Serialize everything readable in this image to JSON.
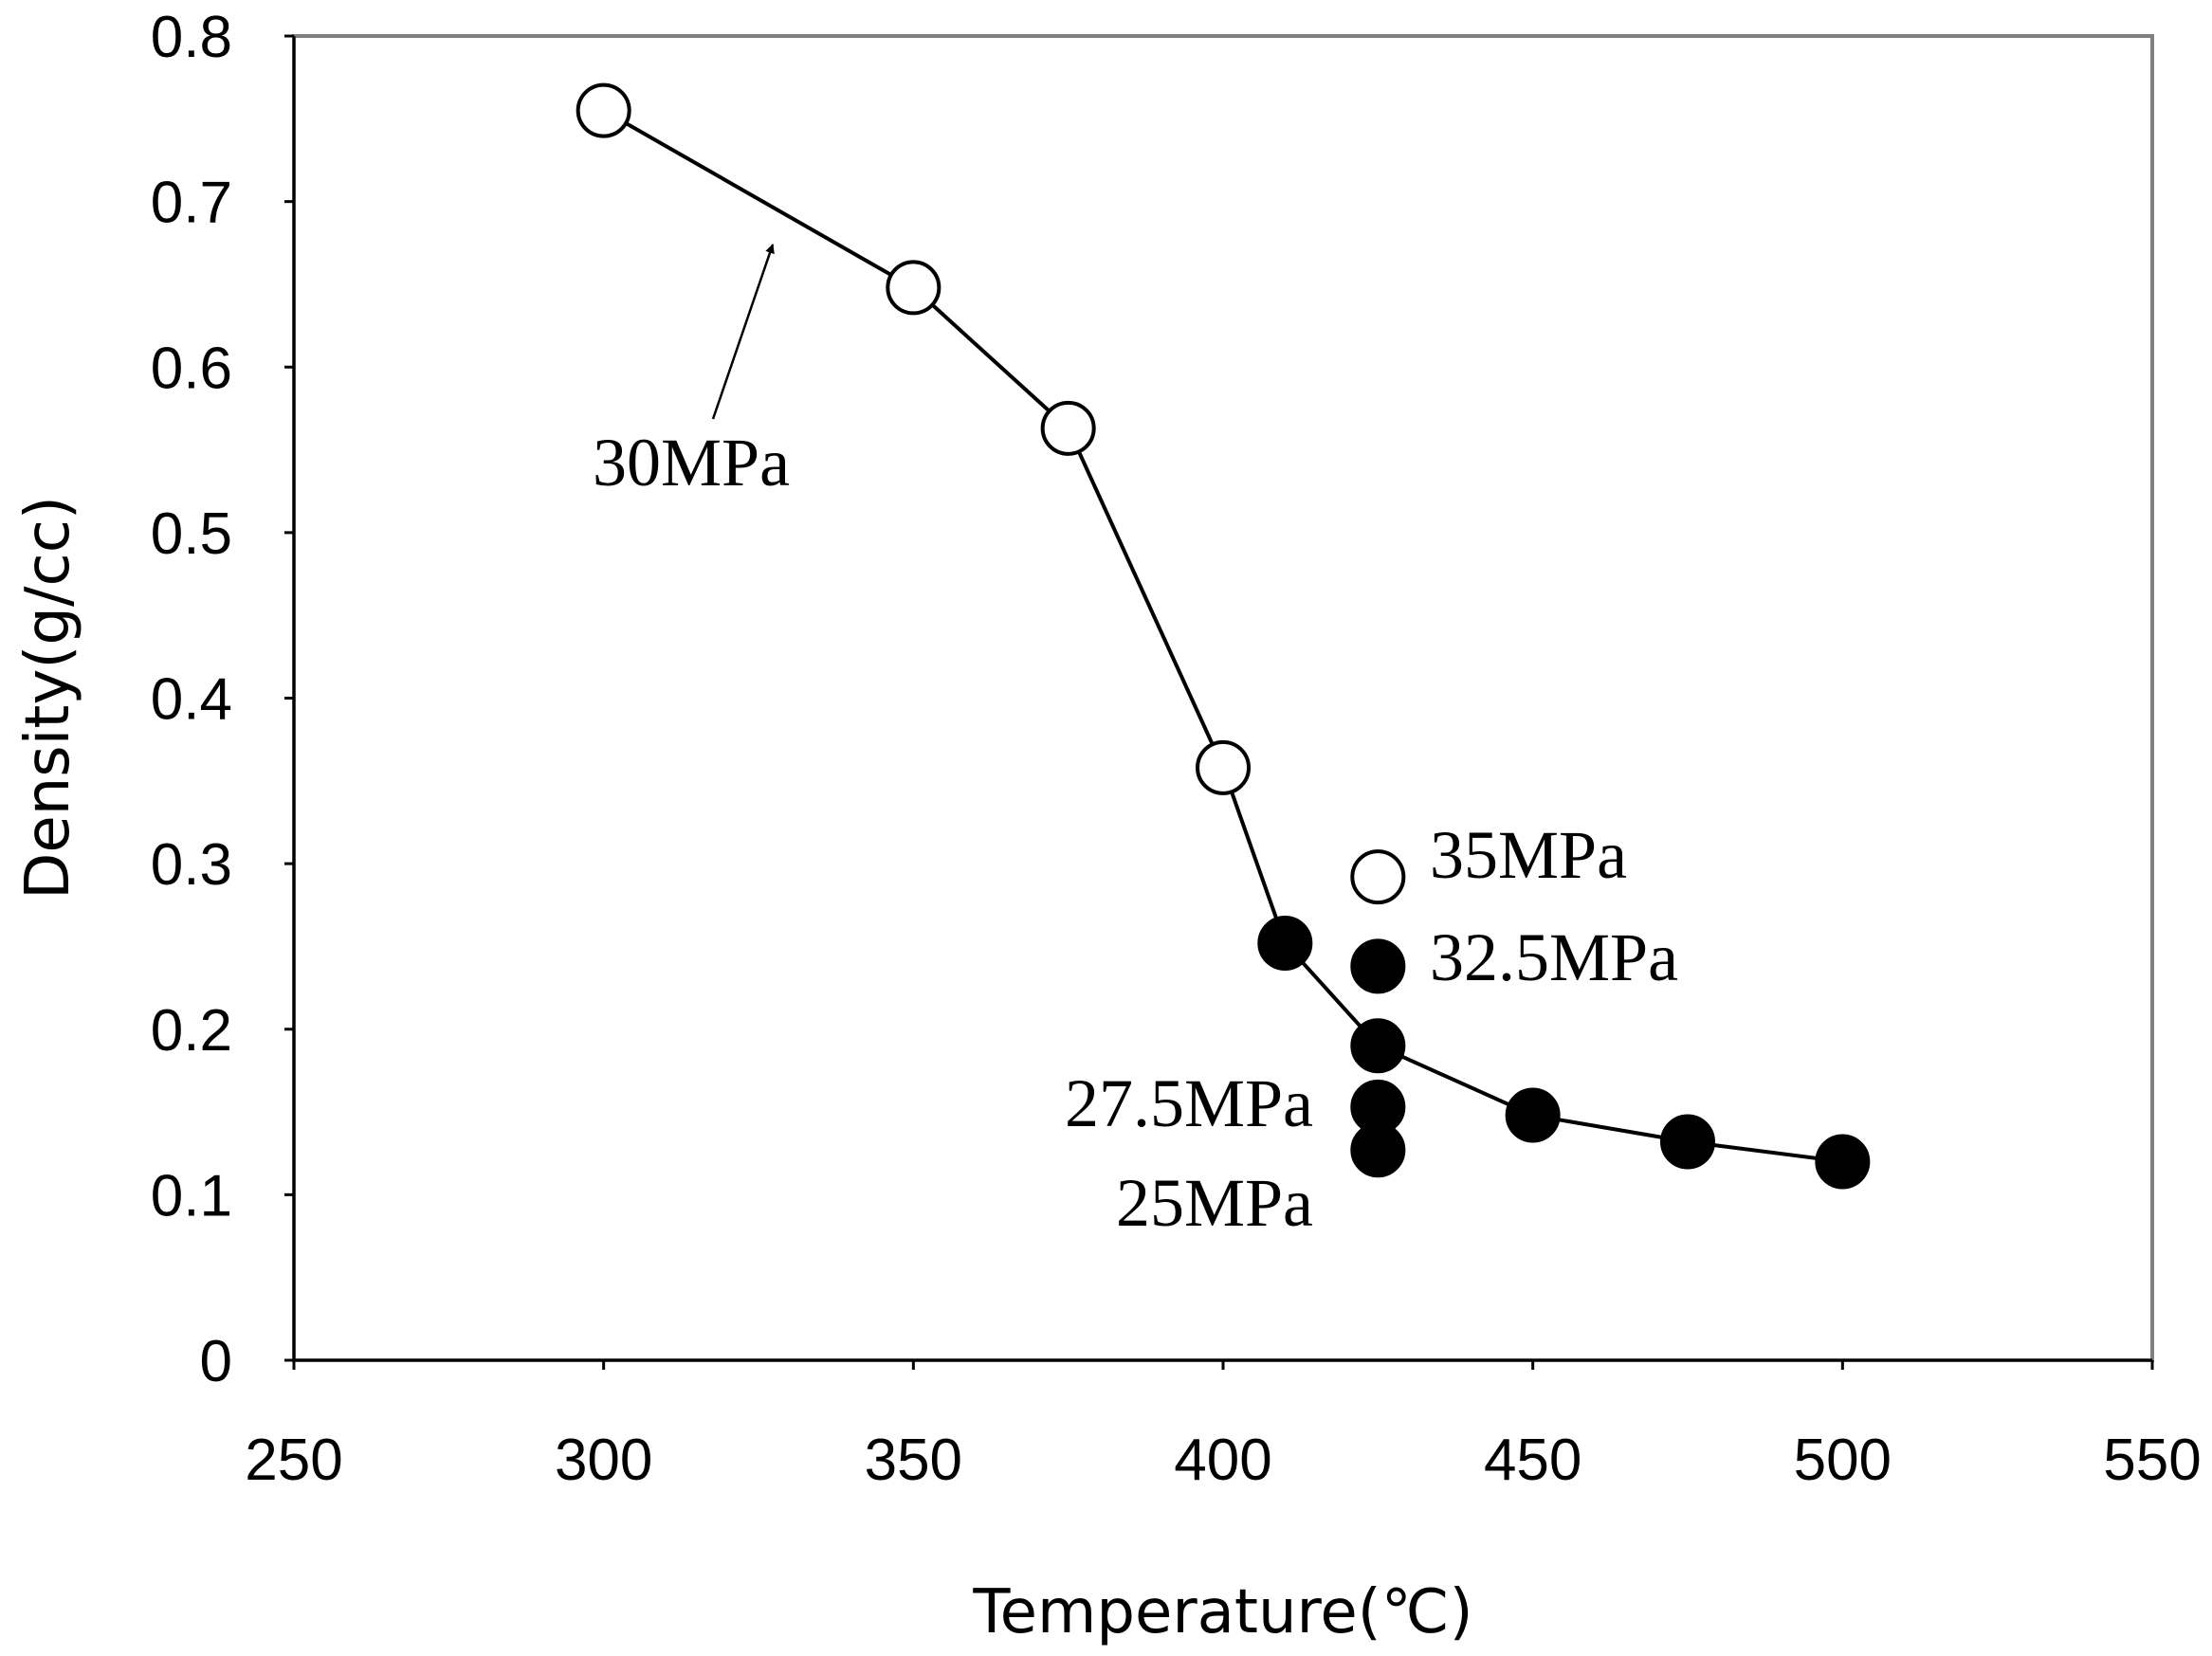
{
  "chart_data": {
    "type": "scatter",
    "xlabel": "Temperature(℃)",
    "ylabel": "Density(g/cc)",
    "xlim": [
      250,
      550
    ],
    "ylim": [
      0,
      0.8
    ],
    "xticks": [
      "250",
      "300",
      "350",
      "400",
      "450",
      "500",
      "550"
    ],
    "yticks": [
      "0",
      "0.1",
      "0.2",
      "0.3",
      "0.4",
      "0.5",
      "0.6",
      "0.7",
      "0.8"
    ],
    "grid": false,
    "series": [
      {
        "marker": "open-circle",
        "connected": true,
        "x": [
          300,
          350,
          375,
          400
        ],
        "y": [
          0.755,
          0.648,
          0.563,
          0.358
        ]
      },
      {
        "marker": "filled-circle",
        "connected": true,
        "x": [
          410,
          425,
          450,
          475,
          500
        ],
        "y": [
          0.252,
          0.19,
          0.148,
          0.132,
          0.12
        ]
      },
      {
        "marker": "open-circle",
        "connected": false,
        "x": [
          425
        ],
        "y": [
          0.292
        ]
      },
      {
        "marker": "filled-circle",
        "connected": false,
        "x": [
          425,
          425,
          425
        ],
        "y": [
          0.238,
          0.153,
          0.127
        ]
      }
    ],
    "annotations": [
      "30MPa",
      "35MPa",
      "32.5MPa",
      "27.5MPa",
      "25MPa"
    ]
  }
}
